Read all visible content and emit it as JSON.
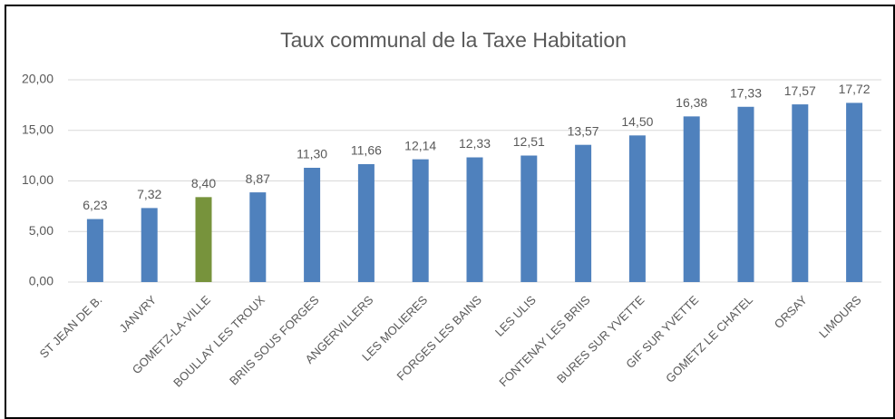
{
  "chart_data": {
    "type": "bar",
    "title": "Taux communal de la Taxe Habitation",
    "categories": [
      "ST JEAN DE B.",
      "JANVRY",
      "GOMETZ-LA-VILLE",
      "BOULLAY LES TROUX",
      "BRIIS SOUS FORGES",
      "ANGERVILLERS",
      "LES MOLIERES",
      "FORGES LES BAINS",
      "LES ULIS",
      "FONTENAY LES BRIIS",
      "BURES SUR YVETTE",
      "GIF SUR YVETTE",
      "GOMETZ LE CHATEL",
      "ORSAY",
      "LIMOURS"
    ],
    "values": [
      6.23,
      7.32,
      8.4,
      8.87,
      11.3,
      11.66,
      12.14,
      12.33,
      12.51,
      13.57,
      14.5,
      16.38,
      17.33,
      17.57,
      17.72
    ],
    "value_labels": [
      "6,23",
      "7,32",
      "8,40",
      "8,87",
      "11,30",
      "11,66",
      "12,14",
      "12,33",
      "12,51",
      "13,57",
      "14,50",
      "16,38",
      "17,33",
      "17,57",
      "17,72"
    ],
    "colors": [
      "#4f81bd",
      "#4f81bd",
      "#77933c",
      "#4f81bd",
      "#4f81bd",
      "#4f81bd",
      "#4f81bd",
      "#4f81bd",
      "#4f81bd",
      "#4f81bd",
      "#4f81bd",
      "#4f81bd",
      "#4f81bd",
      "#4f81bd",
      "#4f81bd"
    ],
    "ylim": [
      0,
      20
    ],
    "yticks": [
      {
        "value": 0,
        "label": "0,00"
      },
      {
        "value": 5,
        "label": "5,00"
      },
      {
        "value": 10,
        "label": "10,00"
      },
      {
        "value": 15,
        "label": "15,00"
      },
      {
        "value": 20,
        "label": "20,00"
      }
    ],
    "grid": true
  }
}
